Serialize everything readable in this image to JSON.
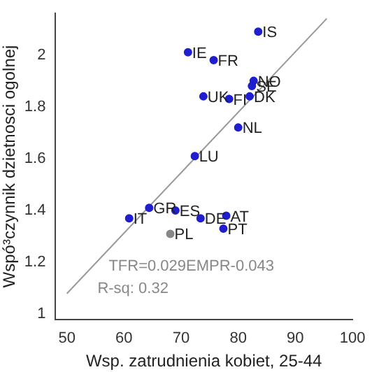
{
  "chart_data": {
    "type": "scatter",
    "xlabel": "Wsp. zatrudnienia kobiet, 25-44",
    "ylabel": "Wspó³czynnik dzietnosci ogolnej",
    "xlim": [
      48,
      100
    ],
    "xticks": [
      50,
      60,
      70,
      80,
      90,
      100
    ],
    "ylim": [
      0.98,
      2.16
    ],
    "yticks": [
      1.0,
      1.2,
      1.4,
      1.6,
      1.8,
      2.0
    ],
    "grid": false,
    "legend": false,
    "marker": "circle",
    "series": [
      {
        "type": "scatter",
        "color": "#1f1fd0",
        "x": [
          83.5,
          71.2,
          75.7,
          82.7,
          82.4,
          82.0,
          78.4,
          73.9,
          80.0,
          72.4,
          60.9,
          64.4,
          69.0,
          73.4,
          77.9,
          77.4
        ],
        "values": [
          2.09,
          2.01,
          1.98,
          1.9,
          1.88,
          1.84,
          1.83,
          1.84,
          1.72,
          1.61,
          1.37,
          1.41,
          1.4,
          1.37,
          1.38,
          1.33
        ]
      },
      {
        "type": "scatter",
        "color": "#888888",
        "x": [
          68.1
        ],
        "values": [
          1.31
        ]
      },
      {
        "type": "line",
        "color": "#999999",
        "marker": "none",
        "x": [
          50,
          95.5
        ],
        "values": [
          1.08,
          2.14
        ]
      }
    ],
    "annotations": [
      {
        "text": "IS",
        "x": 83.5,
        "y": 2.09
      },
      {
        "text": "IE",
        "x": 71.2,
        "y": 2.01
      },
      {
        "text": "FR",
        "x": 75.7,
        "y": 1.98
      },
      {
        "text": "NO",
        "x": 82.7,
        "y": 1.9
      },
      {
        "text": "SE",
        "x": 82.4,
        "y": 1.88
      },
      {
        "text": "DK",
        "x": 82.0,
        "y": 1.84
      },
      {
        "text": "FI",
        "x": 78.4,
        "y": 1.83
      },
      {
        "text": "UK",
        "x": 73.9,
        "y": 1.84
      },
      {
        "text": "NL",
        "x": 80.0,
        "y": 1.72
      },
      {
        "text": "LU",
        "x": 72.4,
        "y": 1.61
      },
      {
        "text": "IT",
        "x": 60.9,
        "y": 1.37
      },
      {
        "text": "GR",
        "x": 64.4,
        "y": 1.41
      },
      {
        "text": "ES",
        "x": 69.0,
        "y": 1.4
      },
      {
        "text": "DE",
        "x": 73.4,
        "y": 1.37
      },
      {
        "text": "AT",
        "x": 77.9,
        "y": 1.38
      },
      {
        "text": "PT",
        "x": 77.4,
        "y": 1.33
      },
      {
        "text": "PL",
        "x": 68.1,
        "y": 1.31
      },
      "TFR=0.029EMPR-0.043",
      "R-sq: 0.32"
    ]
  }
}
